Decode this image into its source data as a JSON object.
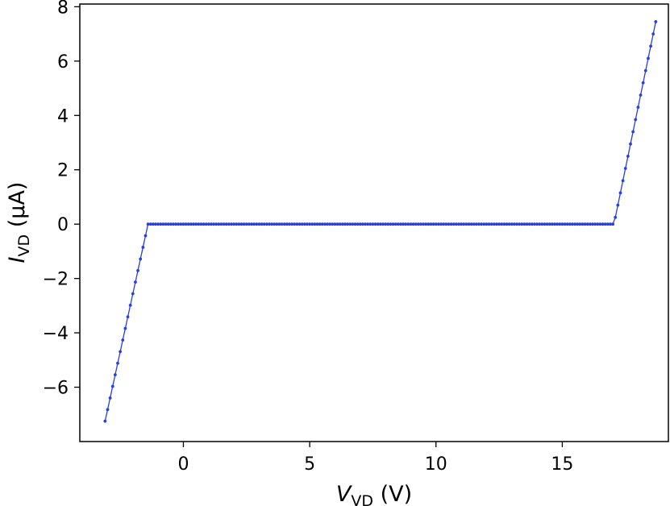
{
  "chart_data": {
    "type": "line",
    "title": "",
    "xlabel": {
      "var": "V",
      "sub": "VD",
      "unit": " (V)"
    },
    "ylabel": {
      "var": "I",
      "sub": "VD",
      "unit": " (μA)"
    },
    "xlim": [
      -4.1,
      19.2
    ],
    "ylim": [
      -8.0,
      8.1
    ],
    "xticks": [
      0,
      5,
      10,
      15
    ],
    "yticks": [
      8,
      6,
      4,
      2,
      0,
      -2,
      -4,
      -6
    ],
    "xtick_labels": [
      "0",
      "5",
      "10",
      "15"
    ],
    "ytick_labels": [
      "8",
      "6",
      "4",
      "2",
      "0",
      "−2",
      "−4",
      "−6"
    ],
    "grid": false,
    "legend": "none",
    "series": [
      {
        "color": "#2a3fe0",
        "marker": "dot",
        "segments": [
          {
            "x_start": -3.1,
            "x_end": -1.4,
            "y_start": -7.25,
            "y_end": 0.0,
            "step": 0.1
          },
          {
            "x_start": -1.3,
            "x_end": 17.0,
            "y_start": 0.0,
            "y_end": 0.0,
            "step": 0.1
          },
          {
            "x_start": 17.1,
            "x_end": 18.7,
            "y_start": 0.25,
            "y_end": 7.45,
            "step": 0.1
          }
        ]
      }
    ]
  }
}
